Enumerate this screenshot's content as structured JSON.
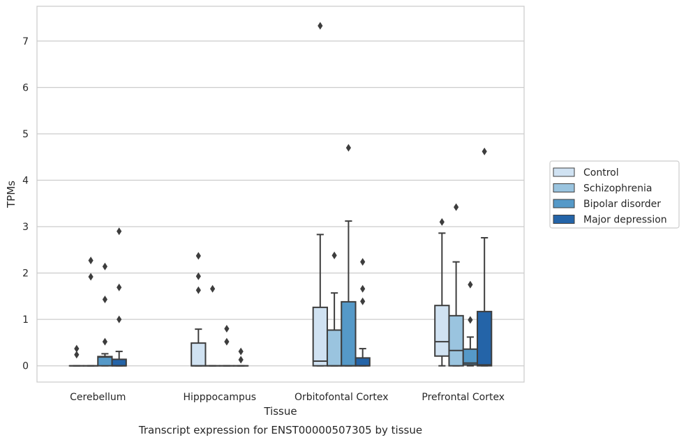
{
  "chart_data": {
    "type": "boxplot",
    "title": "Transcript expression for ENST00000507305 by tissue",
    "xlabel": "Tissue",
    "ylabel": "TPMs",
    "ylim": [
      -0.35,
      7.75
    ],
    "yticks": [
      0,
      1,
      2,
      3,
      4,
      5,
      6,
      7
    ],
    "grid": true,
    "legend_position": "right",
    "categories": [
      "Cerebellum",
      "Hipppocampus",
      "Orbitofontal Cortex",
      "Prefrontal Cortex"
    ],
    "series": [
      {
        "name": "Control",
        "color": "#d0e2f2",
        "boxes": [
          {
            "whislo": 0,
            "q1": 0,
            "med": 0,
            "q3": 0,
            "whishi": 0,
            "fliers": [
              0.37,
              0.24
            ]
          },
          {
            "whislo": 0,
            "q1": 0,
            "med": 0,
            "q3": 0.49,
            "whishi": 0.79,
            "fliers": [
              2.37,
              1.93,
              1.63
            ]
          },
          {
            "whislo": 0,
            "q1": 0,
            "med": 0.1,
            "q3": 1.26,
            "whishi": 2.83,
            "fliers": [
              7.33
            ]
          },
          {
            "whislo": 0,
            "q1": 0.21,
            "med": 0.52,
            "q3": 1.3,
            "whishi": 2.86,
            "fliers": [
              3.1
            ]
          }
        ]
      },
      {
        "name": "Schizophrenia",
        "color": "#9ac4df",
        "boxes": [
          {
            "whislo": 0,
            "q1": 0,
            "med": 0,
            "q3": 0,
            "whishi": 0,
            "fliers": [
              2.27,
              1.92
            ]
          },
          {
            "whislo": 0,
            "q1": 0,
            "med": 0,
            "q3": 0,
            "whishi": 0,
            "fliers": [
              1.66
            ]
          },
          {
            "whislo": 0,
            "q1": 0,
            "med": 0,
            "q3": 0.77,
            "whishi": 1.57,
            "fliers": [
              2.38
            ]
          },
          {
            "whislo": 0,
            "q1": 0,
            "med": 0.33,
            "q3": 1.08,
            "whishi": 2.24,
            "fliers": [
              3.42
            ]
          }
        ]
      },
      {
        "name": "Bipolar disorder",
        "color": "#5599c8",
        "boxes": [
          {
            "whislo": 0,
            "q1": 0,
            "med": 0.19,
            "q3": 0.2,
            "whishi": 0.26,
            "fliers": [
              2.14,
              1.43,
              0.52
            ]
          },
          {
            "whislo": 0,
            "q1": 0,
            "med": 0,
            "q3": 0,
            "whishi": 0,
            "fliers": [
              0.8,
              0.52
            ]
          },
          {
            "whislo": 0,
            "q1": 0,
            "med": 0,
            "q3": 1.38,
            "whishi": 3.12,
            "fliers": [
              4.7
            ]
          },
          {
            "whislo": 0,
            "q1": 0.02,
            "med": 0.06,
            "q3": 0.36,
            "whishi": 0.62,
            "fliers": [
              1.75,
              0.99
            ]
          }
        ]
      },
      {
        "name": "Major depression",
        "color": "#2464a8",
        "boxes": [
          {
            "whislo": 0,
            "q1": 0,
            "med": 0,
            "q3": 0.14,
            "whishi": 0.31,
            "fliers": [
              2.9,
              1.69,
              1.0
            ]
          },
          {
            "whislo": 0,
            "q1": 0,
            "med": 0,
            "q3": 0,
            "whishi": 0,
            "fliers": [
              0.31,
              0.13
            ]
          },
          {
            "whislo": 0,
            "q1": 0,
            "med": 0,
            "q3": 0.17,
            "whishi": 0.37,
            "fliers": [
              2.24,
              1.66,
              1.39
            ]
          },
          {
            "whislo": 0,
            "q1": 0,
            "med": 0.02,
            "q3": 1.17,
            "whishi": 2.76,
            "fliers": [
              4.62
            ]
          }
        ]
      }
    ]
  }
}
